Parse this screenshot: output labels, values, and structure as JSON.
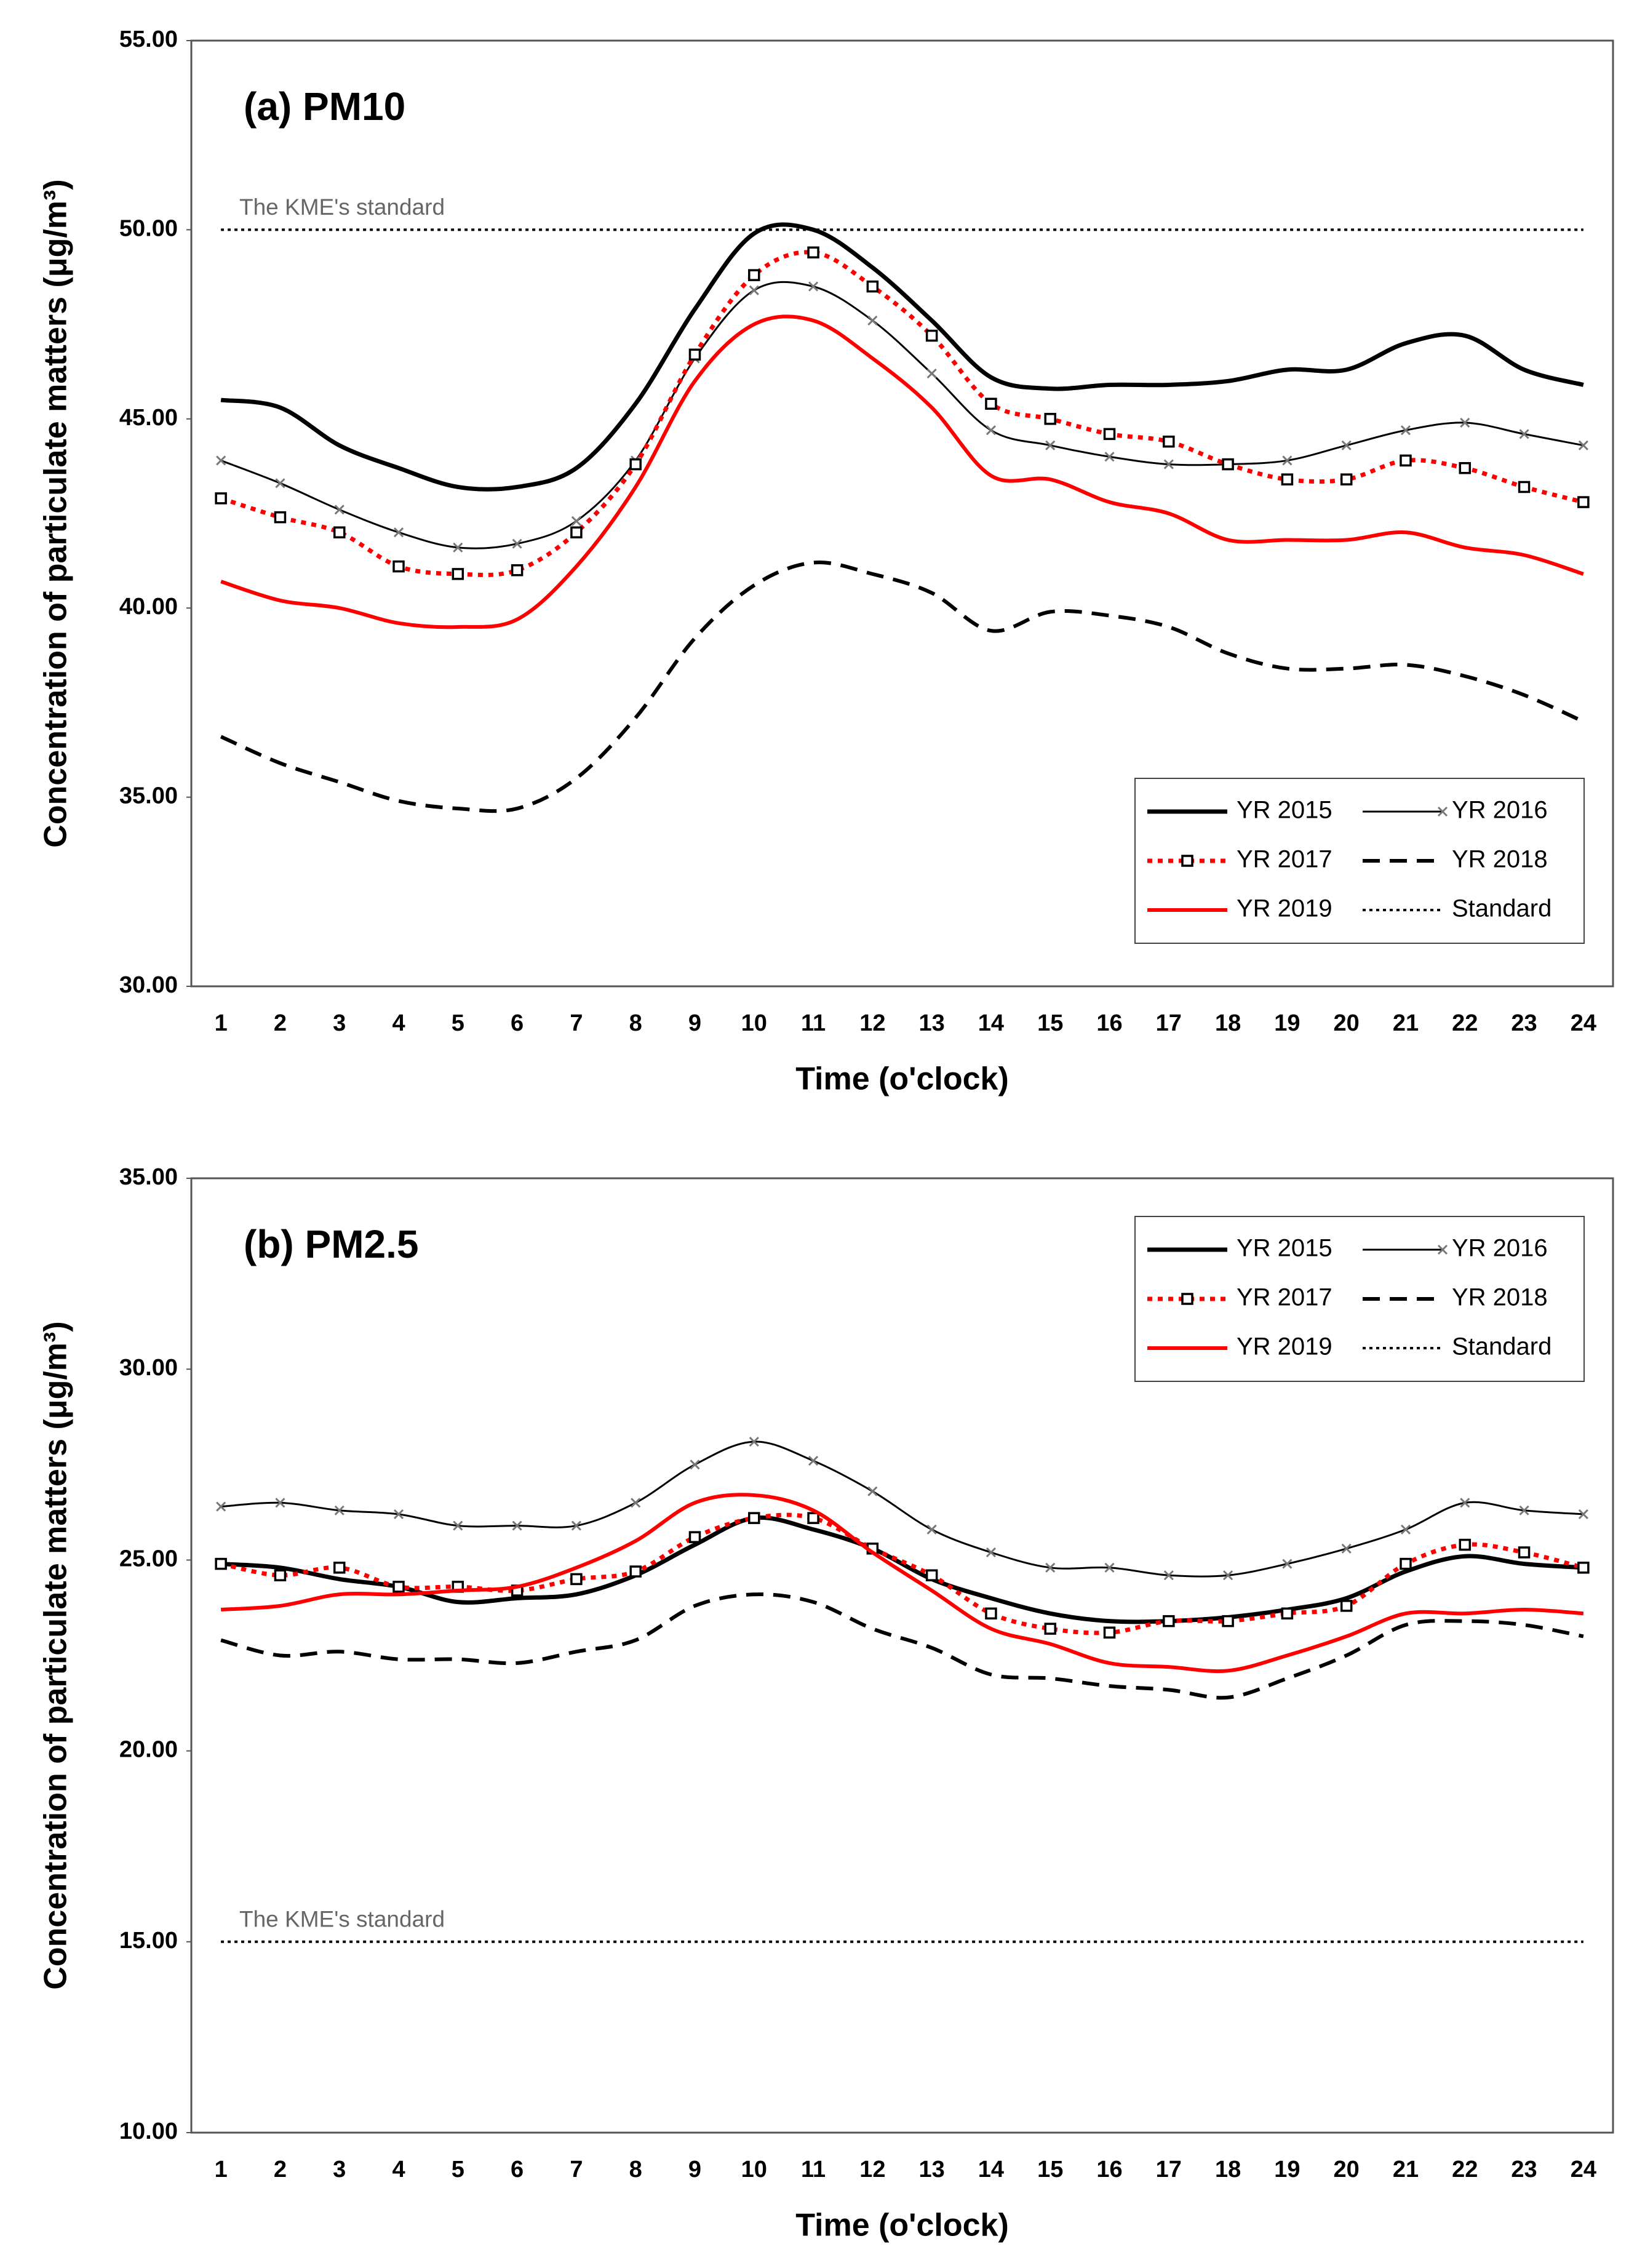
{
  "chart_data": [
    {
      "type": "line",
      "title": "(a) PM10",
      "xlabel": "Time (o'clock)",
      "ylabel": "Concentration of particulate matters (μg/m³)",
      "annotation": "The KME's standard",
      "legend": "lower right",
      "categories": [
        "1",
        "2",
        "3",
        "4",
        "5",
        "6",
        "7",
        "8",
        "9",
        "10",
        "11",
        "12",
        "13",
        "14",
        "15",
        "16",
        "17",
        "18",
        "19",
        "20",
        "21",
        "22",
        "23",
        "24"
      ],
      "ylim": [
        30,
        55
      ],
      "yticks": [
        {
          "value": 30,
          "label": "30.00"
        },
        {
          "value": 35,
          "label": "35.00"
        },
        {
          "value": 40,
          "label": "40.00"
        },
        {
          "value": 45,
          "label": "45.00"
        },
        {
          "value": 50,
          "label": "50.00"
        },
        {
          "value": 55,
          "label": "55.00"
        }
      ],
      "series": [
        {
          "name": "YR 2015",
          "color": "#000000",
          "dash": "solid",
          "width": "thick",
          "values": [
            45.5,
            45.3,
            44.3,
            43.7,
            43.2,
            43.2,
            43.7,
            45.4,
            47.9,
            49.9,
            50.0,
            49.0,
            47.6,
            46.1,
            45.8,
            45.9,
            45.9,
            46.0,
            46.3,
            46.3,
            47.0,
            47.2,
            46.3,
            45.9
          ]
        },
        {
          "name": "YR 2016",
          "color": "#000000",
          "dash": "solid",
          "width": "thin",
          "marker": "x",
          "values": [
            43.9,
            43.3,
            42.6,
            42.0,
            41.6,
            41.7,
            42.3,
            43.9,
            46.6,
            48.4,
            48.5,
            47.6,
            46.2,
            44.7,
            44.3,
            44.0,
            43.8,
            43.8,
            43.9,
            44.3,
            44.7,
            44.9,
            44.6,
            44.3
          ]
        },
        {
          "name": "YR 2017",
          "color": "#ff0000",
          "dash": "dotted",
          "width": "thick",
          "marker": "square",
          "values": [
            42.9,
            42.4,
            42.0,
            41.1,
            40.9,
            41.0,
            42.0,
            43.8,
            46.7,
            48.8,
            49.4,
            48.5,
            47.2,
            45.4,
            45.0,
            44.6,
            44.4,
            43.8,
            43.4,
            43.4,
            43.9,
            43.7,
            43.2,
            42.8
          ]
        },
        {
          "name": "YR 2018",
          "color": "#000000",
          "dash": "dashed",
          "width": "medium",
          "values": [
            36.6,
            35.9,
            35.4,
            34.9,
            34.7,
            34.7,
            35.5,
            37.1,
            39.2,
            40.6,
            41.2,
            40.9,
            40.4,
            39.4,
            39.9,
            39.8,
            39.5,
            38.8,
            38.4,
            38.4,
            38.5,
            38.2,
            37.7,
            37.0
          ]
        },
        {
          "name": "YR 2019",
          "color": "#ff0000",
          "dash": "solid",
          "width": "medium",
          "values": [
            40.7,
            40.2,
            40.0,
            39.6,
            39.5,
            39.7,
            41.1,
            43.2,
            46.0,
            47.5,
            47.6,
            46.6,
            45.3,
            43.5,
            43.4,
            42.8,
            42.5,
            41.8,
            41.8,
            41.8,
            42.0,
            41.6,
            41.4,
            40.9
          ]
        },
        {
          "name": "Standard",
          "color": "#000000",
          "dash": "fine",
          "width": "fine",
          "values": [
            50,
            50,
            50,
            50,
            50,
            50,
            50,
            50,
            50,
            50,
            50,
            50,
            50,
            50,
            50,
            50,
            50,
            50,
            50,
            50,
            50,
            50,
            50,
            50
          ]
        }
      ]
    },
    {
      "type": "line",
      "title": "(b) PM2.5",
      "xlabel": "Time (o'clock)",
      "ylabel": "Concentration of particulate matters (μg/m³)",
      "annotation": "The KME's standard",
      "legend": "upper right",
      "categories": [
        "1",
        "2",
        "3",
        "4",
        "5",
        "6",
        "7",
        "8",
        "9",
        "10",
        "11",
        "12",
        "13",
        "14",
        "15",
        "16",
        "17",
        "18",
        "19",
        "20",
        "21",
        "22",
        "23",
        "24"
      ],
      "ylim": [
        10,
        35
      ],
      "yticks": [
        {
          "value": 10,
          "label": "10.00"
        },
        {
          "value": 15,
          "label": "15.00"
        },
        {
          "value": 20,
          "label": "20.00"
        },
        {
          "value": 25,
          "label": "25.00"
        },
        {
          "value": 30,
          "label": "30.00"
        },
        {
          "value": 35,
          "label": "35.00"
        }
      ],
      "series": [
        {
          "name": "YR 2015",
          "color": "#000000",
          "dash": "solid",
          "width": "thick",
          "values": [
            24.9,
            24.8,
            24.5,
            24.3,
            23.9,
            24.0,
            24.1,
            24.6,
            25.4,
            26.1,
            25.8,
            25.3,
            24.5,
            24.0,
            23.6,
            23.4,
            23.4,
            23.5,
            23.7,
            24.0,
            24.7,
            25.1,
            24.9,
            24.8
          ]
        },
        {
          "name": "YR 2016",
          "color": "#000000",
          "dash": "solid",
          "width": "thin",
          "marker": "x",
          "values": [
            26.4,
            26.5,
            26.3,
            26.2,
            25.9,
            25.9,
            25.9,
            26.5,
            27.5,
            28.1,
            27.6,
            26.8,
            25.8,
            25.2,
            24.8,
            24.8,
            24.6,
            24.6,
            24.9,
            25.3,
            25.8,
            26.5,
            26.3,
            26.2
          ]
        },
        {
          "name": "YR 2017",
          "color": "#ff0000",
          "dash": "dotted",
          "width": "thick",
          "marker": "square",
          "values": [
            24.9,
            24.6,
            24.8,
            24.3,
            24.3,
            24.2,
            24.5,
            24.7,
            25.6,
            26.1,
            26.1,
            25.3,
            24.6,
            23.6,
            23.2,
            23.1,
            23.4,
            23.4,
            23.6,
            23.8,
            24.9,
            25.4,
            25.2,
            24.8
          ]
        },
        {
          "name": "YR 2018",
          "color": "#000000",
          "dash": "dashed",
          "width": "medium",
          "values": [
            22.9,
            22.5,
            22.6,
            22.4,
            22.4,
            22.3,
            22.6,
            22.9,
            23.8,
            24.1,
            23.9,
            23.2,
            22.7,
            22.0,
            21.9,
            21.7,
            21.6,
            21.4,
            21.9,
            22.5,
            23.3,
            23.4,
            23.3,
            23.0
          ]
        },
        {
          "name": "YR 2019",
          "color": "#ff0000",
          "dash": "solid",
          "width": "medium",
          "values": [
            23.7,
            23.8,
            24.1,
            24.1,
            24.2,
            24.3,
            24.8,
            25.5,
            26.5,
            26.7,
            26.3,
            25.2,
            24.2,
            23.2,
            22.8,
            22.3,
            22.2,
            22.1,
            22.5,
            23.0,
            23.6,
            23.6,
            23.7,
            23.6
          ]
        },
        {
          "name": "Standard",
          "color": "#000000",
          "dash": "fine",
          "width": "fine",
          "values": [
            15,
            15,
            15,
            15,
            15,
            15,
            15,
            15,
            15,
            15,
            15,
            15,
            15,
            15,
            15,
            15,
            15,
            15,
            15,
            15,
            15,
            15,
            15,
            15
          ]
        }
      ]
    }
  ]
}
